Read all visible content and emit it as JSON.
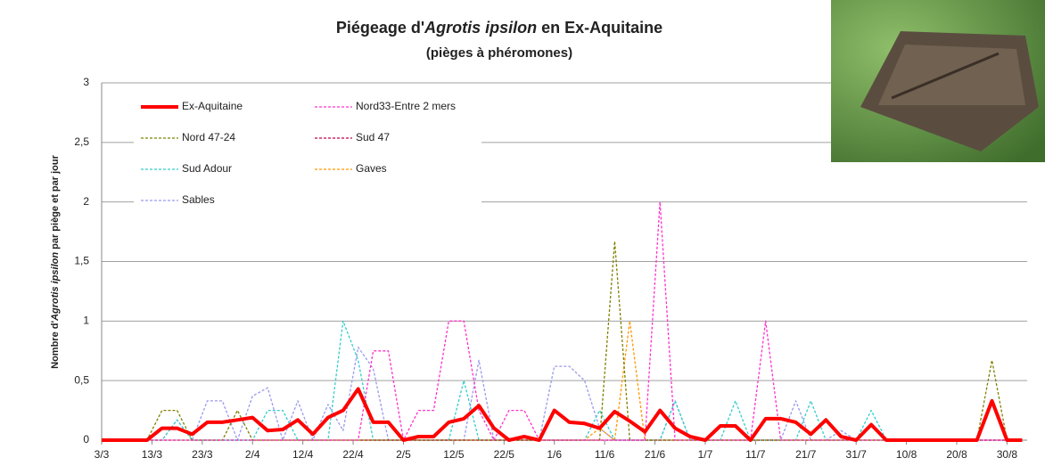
{
  "chart_data": {
    "type": "line",
    "title": {
      "prefix": "Piégeage d'",
      "italic": "Agrotis ipsilon",
      "suffix": " en Ex-Aquitaine"
    },
    "subtitle": "(pièges à phéromones)",
    "y_label": {
      "prefix": "Nombre d'",
      "italic": "Agrotis ipsilon",
      "suffix": " par piège et par jour"
    },
    "x": [
      0,
      3,
      6,
      9,
      12,
      15,
      18,
      21,
      24,
      27,
      30,
      33,
      36,
      39,
      42,
      45,
      48,
      51,
      54,
      57,
      60,
      63,
      66,
      69,
      72,
      75,
      78,
      81,
      84,
      87,
      90,
      93,
      96,
      99,
      102,
      105,
      108,
      111,
      114,
      117,
      120,
      123,
      126,
      129,
      132,
      135,
      138,
      141,
      144,
      147,
      150,
      153,
      156,
      159,
      162,
      165,
      168,
      171,
      174,
      177,
      180,
      183
    ],
    "xlim": [
      0,
      184
    ],
    "xticks": [
      {
        "value": 0,
        "label": "3/3"
      },
      {
        "value": 10,
        "label": "13/3"
      },
      {
        "value": 20,
        "label": "23/3"
      },
      {
        "value": 30,
        "label": "2/4"
      },
      {
        "value": 40,
        "label": "12/4"
      },
      {
        "value": 50,
        "label": "22/4"
      },
      {
        "value": 60,
        "label": "2/5"
      },
      {
        "value": 70,
        "label": "12/5"
      },
      {
        "value": 80,
        "label": "22/5"
      },
      {
        "value": 90,
        "label": "1/6"
      },
      {
        "value": 100,
        "label": "11/6"
      },
      {
        "value": 110,
        "label": "21/6"
      },
      {
        "value": 120,
        "label": "1/7"
      },
      {
        "value": 130,
        "label": "11/7"
      },
      {
        "value": 140,
        "label": "21/7"
      },
      {
        "value": 150,
        "label": "31/7"
      },
      {
        "value": 160,
        "label": "10/8"
      },
      {
        "value": 170,
        "label": "20/8"
      },
      {
        "value": 180,
        "label": "30/8"
      }
    ],
    "ylim": [
      0,
      3
    ],
    "yticks": [
      0,
      {
        "value": 0.5,
        "label": "0,5"
      },
      1,
      {
        "value": 1.5,
        "label": "1,5"
      },
      2,
      {
        "value": 2.5,
        "label": "2,5"
      },
      3
    ],
    "grid": true,
    "series": [
      {
        "name": "Ex-Aquitaine",
        "color": "#ff0000",
        "style": "solid",
        "values": [
          0,
          0,
          0,
          0,
          0.1,
          0.1,
          0.05,
          0.15,
          0.15,
          0.17,
          0.19,
          0.08,
          0.09,
          0.17,
          0.05,
          0.19,
          0.25,
          0.43,
          0.15,
          0.15,
          0,
          0.03,
          0.03,
          0.15,
          0.18,
          0.29,
          0.1,
          0,
          0.03,
          0,
          0.25,
          0.15,
          0.14,
          0.1,
          0.24,
          0.16,
          0.07,
          0.25,
          0.1,
          0.03,
          0,
          0.12,
          0.12,
          0,
          0.18,
          0.18,
          0.15,
          0.05,
          0.17,
          0.03,
          0,
          0.13,
          0,
          0,
          0,
          0,
          0,
          0,
          0,
          0.33,
          0,
          0
        ]
      },
      {
        "name": "Nord33-Entre 2 mers",
        "color": "#ff33cc",
        "style": "dashed",
        "values": [
          0,
          0,
          0,
          0,
          0,
          0,
          0,
          0,
          0,
          0,
          0,
          0,
          0,
          0,
          0,
          0,
          0,
          0,
          0.75,
          0.75,
          0,
          0.25,
          0.25,
          1,
          1,
          0.25,
          0,
          0.25,
          0.25,
          0,
          0,
          0,
          0,
          0,
          0,
          0,
          0,
          2,
          0,
          0,
          0,
          0,
          0,
          0,
          1,
          0,
          0,
          0,
          0,
          0,
          0,
          0,
          0,
          0,
          0,
          0,
          0,
          0,
          0,
          0,
          0,
          0
        ]
      },
      {
        "name": "Nord 47-24",
        "color": "#808000",
        "style": "dashed",
        "values": [
          0,
          0,
          0,
          0,
          0.25,
          0.25,
          0,
          0,
          0,
          0.25,
          0,
          0,
          0,
          0,
          0,
          0,
          0,
          0,
          0,
          0,
          0,
          0,
          0,
          0,
          0,
          0,
          0,
          0,
          0,
          0,
          0,
          0,
          0,
          0,
          1.67,
          0,
          0,
          0,
          0,
          0,
          0,
          0,
          0,
          0,
          0,
          0,
          0,
          0,
          0,
          0,
          0,
          0,
          0,
          0,
          0,
          0,
          0,
          0,
          0,
          0.67,
          0,
          0
        ]
      },
      {
        "name": "Sud 47",
        "color": "#c0004a",
        "style": "dashed",
        "values": [
          0,
          0,
          0,
          0,
          0,
          0,
          0,
          0,
          0,
          0,
          0,
          0,
          0,
          0,
          0,
          0,
          0,
          0,
          0,
          0,
          0,
          0,
          0,
          0,
          0,
          0,
          0,
          0,
          0,
          0,
          0,
          0,
          0,
          0,
          0,
          0,
          0,
          0,
          0,
          0,
          0,
          0,
          0,
          0,
          0,
          0,
          0,
          0,
          0,
          0,
          0,
          0,
          0,
          0,
          0,
          0,
          0,
          0,
          0,
          0,
          0,
          0
        ]
      },
      {
        "name": "Sud Adour",
        "color": "#33cccc",
        "style": "dashed",
        "values": [
          0,
          0,
          0,
          0,
          0,
          0.17,
          0,
          0,
          0,
          0,
          0,
          0.25,
          0.25,
          0,
          0,
          0,
          1,
          0.67,
          0,
          0,
          0,
          0,
          0,
          0,
          0.5,
          0,
          0,
          0,
          0,
          0,
          0,
          0,
          0,
          0.25,
          0,
          0,
          0,
          0,
          0.33,
          0,
          0,
          0,
          0.33,
          0,
          0,
          0,
          0,
          0.33,
          0,
          0,
          0,
          0.25,
          0,
          0,
          0,
          0,
          0,
          0,
          0,
          0,
          0,
          0
        ]
      },
      {
        "name": "Gaves",
        "color": "#ff9900",
        "style": "dashed",
        "values": [
          0,
          0,
          0,
          0,
          0,
          0,
          0,
          0,
          0,
          0,
          0,
          0,
          0,
          0,
          0,
          0,
          0,
          0,
          0,
          0,
          0,
          0,
          0,
          0,
          0,
          0,
          0,
          0,
          0,
          0,
          0,
          0,
          0,
          0.1,
          0,
          1,
          0,
          0,
          0,
          0,
          0,
          0,
          0,
          0,
          0,
          0,
          0,
          0,
          0,
          0,
          0,
          0,
          0,
          0,
          0,
          0,
          0,
          0,
          0,
          0,
          0,
          0
        ]
      },
      {
        "name": "Sables",
        "color": "#9999ee",
        "style": "dashed",
        "values": [
          0,
          0,
          0,
          0,
          0,
          0.17,
          0,
          0.33,
          0.33,
          0,
          0.37,
          0.44,
          0,
          0.33,
          0,
          0.3,
          0.08,
          0.78,
          0.6,
          0,
          0,
          0,
          0,
          0,
          0,
          0.67,
          0,
          0,
          0,
          0,
          0.62,
          0.62,
          0.5,
          0.1,
          0,
          0,
          0,
          0,
          0.33,
          0,
          0,
          0,
          0,
          0,
          0,
          0,
          0.33,
          0,
          0,
          0.08,
          0,
          0,
          0,
          0,
          0,
          0,
          0,
          0,
          0,
          0,
          0,
          0
        ]
      }
    ]
  }
}
